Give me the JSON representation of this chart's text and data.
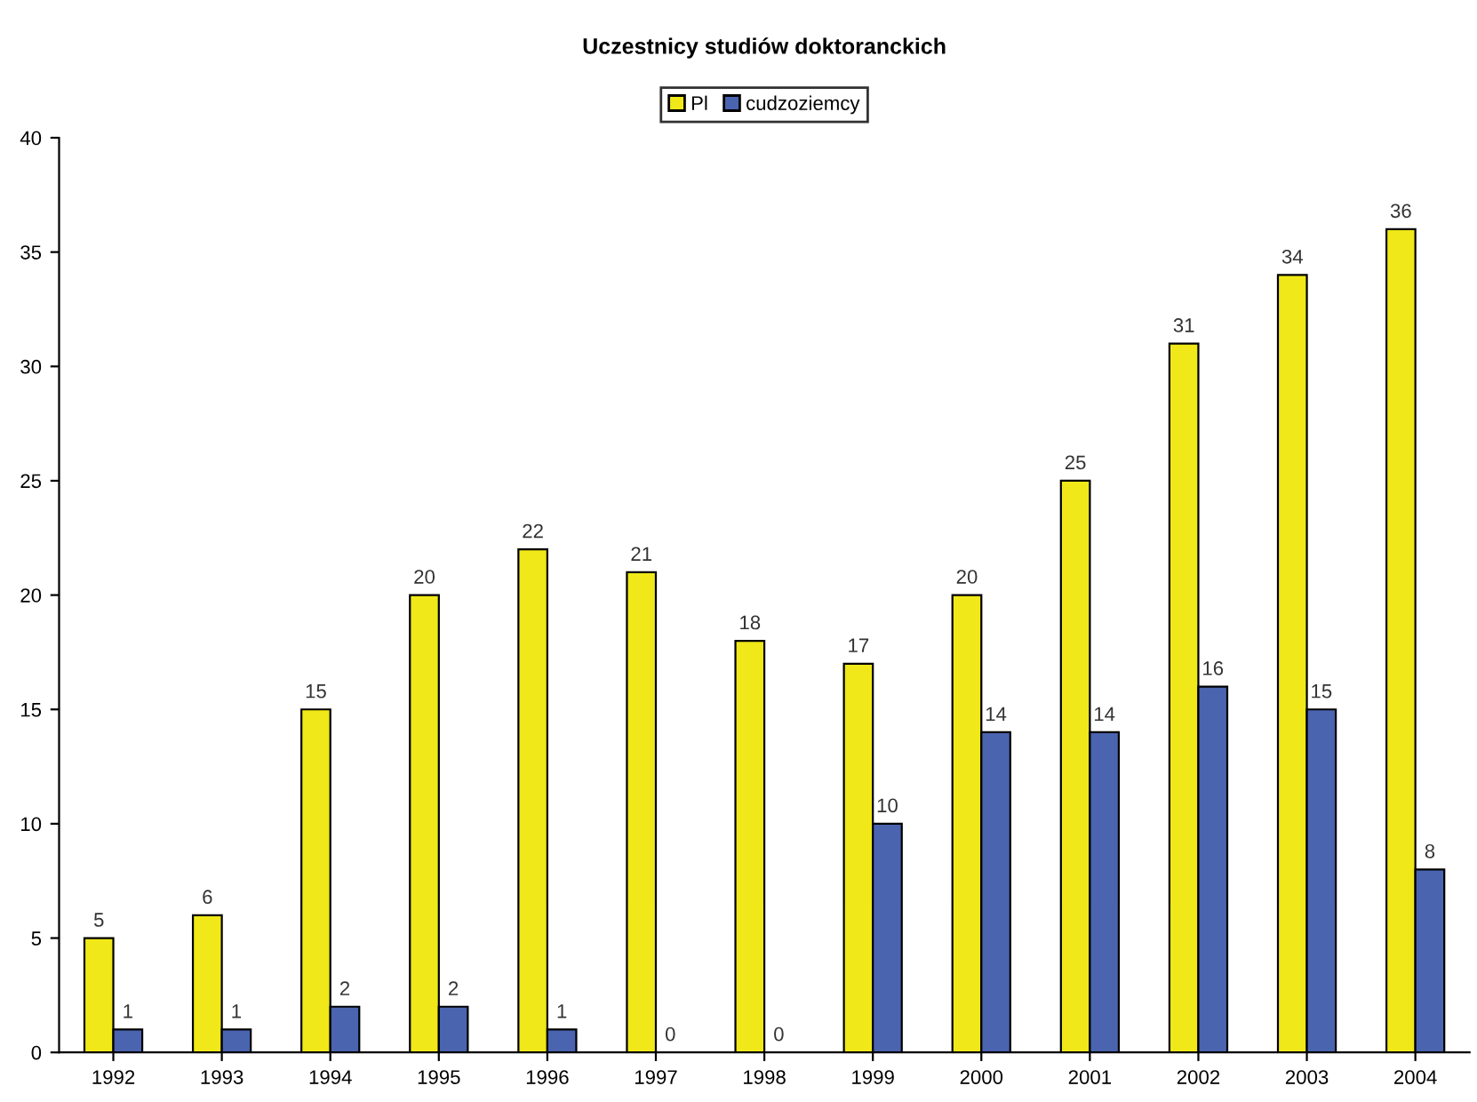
{
  "chart_data": {
    "type": "bar",
    "title": "Uczestnicy studiów doktoranckich",
    "categories": [
      "1992",
      "1993",
      "1994",
      "1995",
      "1996",
      "1997",
      "1998",
      "1999",
      "2000",
      "2001",
      "2002",
      "2003",
      "2004"
    ],
    "series": [
      {
        "name": "Pl",
        "color": "#f0e818",
        "values": [
          5,
          6,
          15,
          20,
          22,
          21,
          18,
          17,
          20,
          25,
          31,
          34,
          36
        ]
      },
      {
        "name": "cudzoziemcy",
        "color": "#4a64b0",
        "values": [
          1,
          1,
          2,
          2,
          1,
          0,
          0,
          10,
          14,
          14,
          16,
          15,
          8
        ]
      }
    ],
    "ylim": [
      0,
      40
    ],
    "yticks": [
      0,
      5,
      10,
      15,
      20,
      25,
      30,
      35,
      40
    ],
    "data_labels": true,
    "legend": "top",
    "grid": false
  }
}
